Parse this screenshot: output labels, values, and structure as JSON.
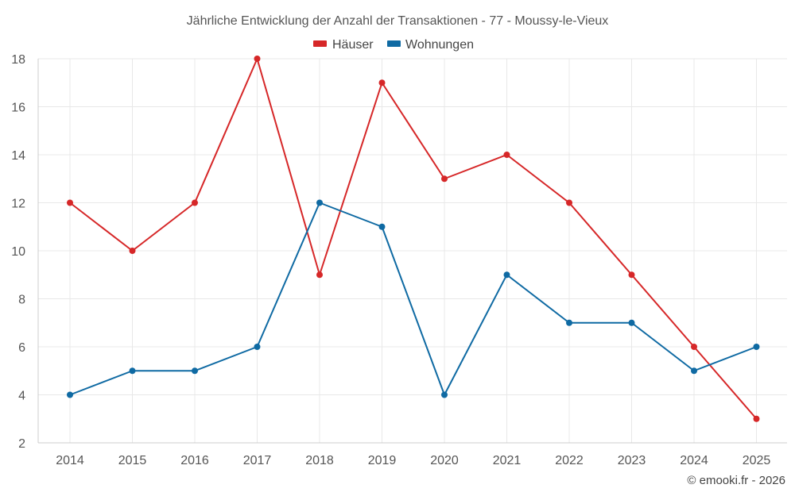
{
  "chart_data": {
    "type": "line",
    "title": "Jährliche Entwicklung der Anzahl der Transaktionen - 77 - Moussy-le-Vieux",
    "categories": [
      "2014",
      "2015",
      "2016",
      "2017",
      "2018",
      "2019",
      "2020",
      "2021",
      "2022",
      "2023",
      "2024",
      "2025"
    ],
    "series": [
      {
        "name": "Häuser",
        "color": "#d62728",
        "values": [
          12,
          10,
          12,
          18,
          9,
          17,
          13,
          14,
          12,
          9,
          6,
          3
        ]
      },
      {
        "name": "Wohnungen",
        "color": "#0f6aa3",
        "values": [
          4,
          5,
          5,
          6,
          12,
          11,
          4,
          9,
          7,
          7,
          5,
          6
        ]
      }
    ],
    "ylim": [
      2,
      18
    ],
    "yticks": [
      2,
      4,
      6,
      8,
      10,
      12,
      14,
      16,
      18
    ],
    "grid": true,
    "legend_position": "top-center"
  },
  "credit": "© emooki.fr - 2026"
}
